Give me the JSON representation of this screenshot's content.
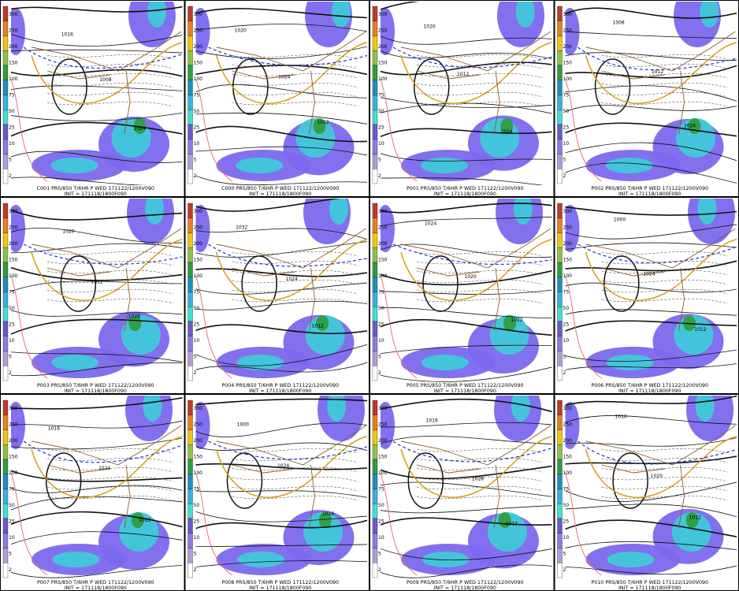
{
  "panels": [
    {
      "label": "C001 PRS/850 T/6HR P WED 171122/1200V090",
      "init": "INIT = 171118/1800F090",
      "contour_labels": [
        "1016",
        "1008",
        "1024"
      ]
    },
    {
      "label": "C000 PRS/850 T/6HR P WED 171122/1200V090",
      "init": "INIT = 171118/1800F090",
      "contour_labels": [
        "1020",
        "1024",
        "1012"
      ]
    },
    {
      "label": "P001 PRS/850 T/6HR P WED 171122/1200V090",
      "init": "INIT = 171118/1800F090",
      "contour_labels": [
        "1020",
        "1012",
        "1024"
      ]
    },
    {
      "label": "P002 PRS/850 T/6HR P WED 171122/1200V090",
      "init": "INIT = 171118/1800F090",
      "contour_labels": [
        "1008",
        "1012",
        "1024"
      ]
    },
    {
      "label": "P003 PRS/850 T/6HR P WED 171122/1200V090",
      "init": "INIT = 171118/1800F090",
      "contour_labels": [
        "1020",
        "1012",
        "1028"
      ]
    },
    {
      "label": "P004 PRS/850 T/6HR P WED 171122/1200V090",
      "init": "INIT = 171118/1800F090",
      "contour_labels": [
        "1032",
        "1024",
        "1012"
      ]
    },
    {
      "label": "P005 PRS/850 T/6HR P WED 171122/1200V090",
      "init": "INIT = 171118/1800F090",
      "contour_labels": [
        "1024",
        "1020",
        "1012"
      ]
    },
    {
      "label": "P006 PRS/850 T/6HR P WED 171122/1200V090",
      "init": "INIT = 171118/1800F090",
      "contour_labels": [
        "1000",
        "1024",
        "1012"
      ]
    },
    {
      "label": "P007 PRS/850 T/6HR P WED 171122/1200V090",
      "init": "INIT = 171118/1800F090",
      "contour_labels": [
        "1016",
        "1024",
        "1012"
      ]
    },
    {
      "label": "P008 PRS/850 T/6HR P WED 171122/1200V090",
      "init": "INIT = 171118/1800F090",
      "contour_labels": [
        "1000",
        "1024",
        "1016"
      ]
    },
    {
      "label": "P009 PRS/850 T/6HR P WED 171122/1200V090",
      "init": "INIT = 171118/1800F090",
      "contour_labels": [
        "1016",
        "1028",
        "1012"
      ]
    },
    {
      "label": "P010 PRS/850 T/6HR P WED 171122/1200V090",
      "init": "INIT = 171118/1800F090",
      "contour_labels": [
        "1016",
        "1020",
        "1012"
      ]
    }
  ],
  "colorbar_labels": [
    "300",
    "250",
    "200",
    "150",
    "100",
    "75",
    "50",
    "25",
    "10",
    "5",
    "2"
  ]
}
